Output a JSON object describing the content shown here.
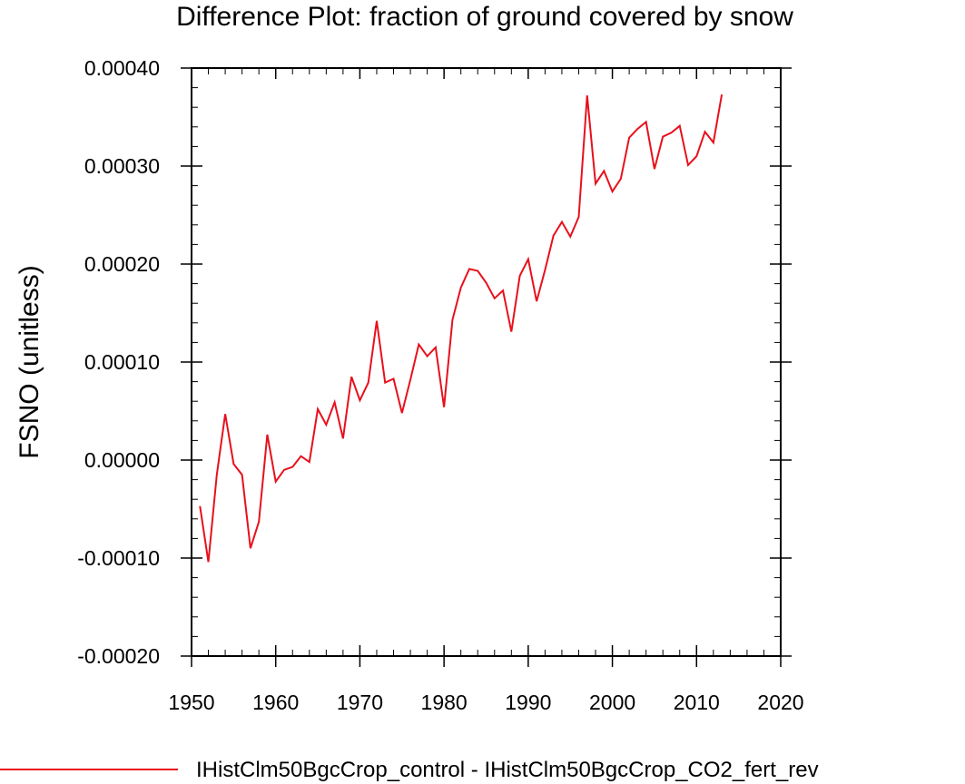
{
  "chart_data": {
    "type": "line",
    "title": "Difference Plot: fraction of ground covered by snow",
    "xlabel": "",
    "ylabel": "FSNO  (unitless)",
    "xlim": [
      1950,
      2020
    ],
    "ylim": [
      -0.0002,
      0.0004
    ],
    "x_ticks": [
      1950,
      1960,
      1970,
      1980,
      1990,
      2000,
      2010,
      2020
    ],
    "x_tick_labels": [
      "1950",
      "1960",
      "1970",
      "1980",
      "1990",
      "2000",
      "2010",
      "2020"
    ],
    "y_ticks": [
      -0.0002,
      -0.0001,
      0.0,
      0.0001,
      0.0002,
      0.0003,
      0.0004
    ],
    "y_tick_labels": [
      "-0.00020",
      "-0.00010",
      "0.00000",
      "0.00010",
      "0.00020",
      "0.00030",
      "0.00040"
    ],
    "grid": false,
    "legend_position": "bottom",
    "series": [
      {
        "name": "IHistClm50BgcCrop_control - IHistClm50BgcCrop_CO2_fert_rev",
        "color": "#e8101c",
        "x": [
          1951,
          1952,
          1953,
          1954,
          1955,
          1956,
          1957,
          1958,
          1959,
          1960,
          1961,
          1962,
          1963,
          1964,
          1965,
          1966,
          1967,
          1968,
          1969,
          1970,
          1971,
          1972,
          1973,
          1974,
          1975,
          1976,
          1977,
          1978,
          1979,
          1980,
          1981,
          1982,
          1983,
          1984,
          1985,
          1986,
          1987,
          1988,
          1989,
          1990,
          1991,
          1992,
          1993,
          1994,
          1995,
          1996,
          1997,
          1998,
          1999,
          2000,
          2001,
          2002,
          2003,
          2004,
          2005,
          2006,
          2007,
          2008,
          2009,
          2010,
          2011,
          2012,
          2013
        ],
        "y": [
          -4.7e-05,
          -0.000104,
          -1.5e-05,
          4.7e-05,
          -4e-06,
          -1.5e-05,
          -9e-05,
          -6.3e-05,
          2.6e-05,
          -2.2e-05,
          -1e-05,
          -7e-06,
          4e-06,
          -2e-06,
          5.2e-05,
          3.6e-05,
          5.9e-05,
          2.2e-05,
          8.5e-05,
          6.1e-05,
          7.9e-05,
          0.000142,
          7.9e-05,
          8.3e-05,
          4.8e-05,
          8.2e-05,
          0.000118,
          0.000106,
          0.000115,
          5.4e-05,
          0.000143,
          0.000176,
          0.000195,
          0.000193,
          0.000181,
          0.000165,
          0.000173,
          0.000131,
          0.000188,
          0.000205,
          0.000162,
          0.000194,
          0.000229,
          0.000243,
          0.000228,
          0.000248,
          0.000372,
          0.000282,
          0.000295,
          0.000274,
          0.000287,
          0.000329,
          0.000338,
          0.000345,
          0.000297,
          0.00033,
          0.000334,
          0.000341,
          0.000301,
          0.00031,
          0.000335,
          0.000324,
          0.000373
        ]
      }
    ]
  }
}
